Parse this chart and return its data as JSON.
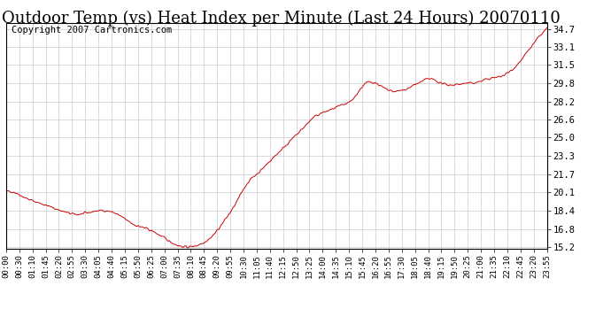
{
  "title": "Outdoor Temp (vs) Heat Index per Minute (Last 24 Hours) 20070110",
  "copyright_text": "Copyright 2007 Cartronics.com",
  "line_color": "#cc0000",
  "background_color": "#ffffff",
  "plot_bg_color": "#ffffff",
  "grid_color": "#cccccc",
  "title_fontsize": 13,
  "copyright_fontsize": 7.5,
  "ytick_labels": [
    "15.2",
    "16.8",
    "18.4",
    "20.1",
    "21.7",
    "23.3",
    "25.0",
    "26.6",
    "28.2",
    "29.8",
    "31.5",
    "33.1",
    "34.7"
  ],
  "ytick_values": [
    15.2,
    16.8,
    18.4,
    20.1,
    21.7,
    23.3,
    25.0,
    26.6,
    28.2,
    29.8,
    31.5,
    33.1,
    34.7
  ],
  "xtick_labels": [
    "00:00",
    "00:30",
    "01:10",
    "01:45",
    "02:20",
    "02:55",
    "03:30",
    "04:05",
    "04:40",
    "05:15",
    "05:50",
    "06:25",
    "07:00",
    "07:35",
    "08:10",
    "08:45",
    "09:20",
    "09:55",
    "10:30",
    "11:05",
    "11:40",
    "12:15",
    "12:50",
    "13:25",
    "14:00",
    "14:35",
    "15:10",
    "15:45",
    "16:20",
    "16:55",
    "17:30",
    "18:05",
    "18:40",
    "19:15",
    "19:50",
    "20:25",
    "21:00",
    "21:35",
    "22:10",
    "22:45",
    "23:20",
    "23:55"
  ],
  "ylim": [
    15.0,
    35.2
  ],
  "xlim": [
    0,
    1439
  ],
  "num_points": 1440,
  "control_x": [
    0,
    20,
    50,
    90,
    140,
    190,
    240,
    290,
    340,
    375,
    400,
    420,
    440,
    460,
    490,
    520,
    550,
    580,
    610,
    640,
    670,
    700,
    730,
    760,
    790,
    820,
    860,
    890,
    920,
    950,
    980,
    1010,
    1040,
    1070,
    1100,
    1130,
    1160,
    1190,
    1220,
    1250,
    1280,
    1320,
    1360,
    1400,
    1439
  ],
  "control_y": [
    20.1,
    20.1,
    19.6,
    19.1,
    18.5,
    18.1,
    18.4,
    18.2,
    17.2,
    16.8,
    16.4,
    16.0,
    15.6,
    15.3,
    15.2,
    15.5,
    16.2,
    17.5,
    19.0,
    20.8,
    21.8,
    22.8,
    23.8,
    24.8,
    25.8,
    26.8,
    27.4,
    27.8,
    28.3,
    29.6,
    29.9,
    29.3,
    29.1,
    29.4,
    29.9,
    30.2,
    29.8,
    29.7,
    29.8,
    29.9,
    30.2,
    30.5,
    31.5,
    33.2,
    34.7
  ]
}
